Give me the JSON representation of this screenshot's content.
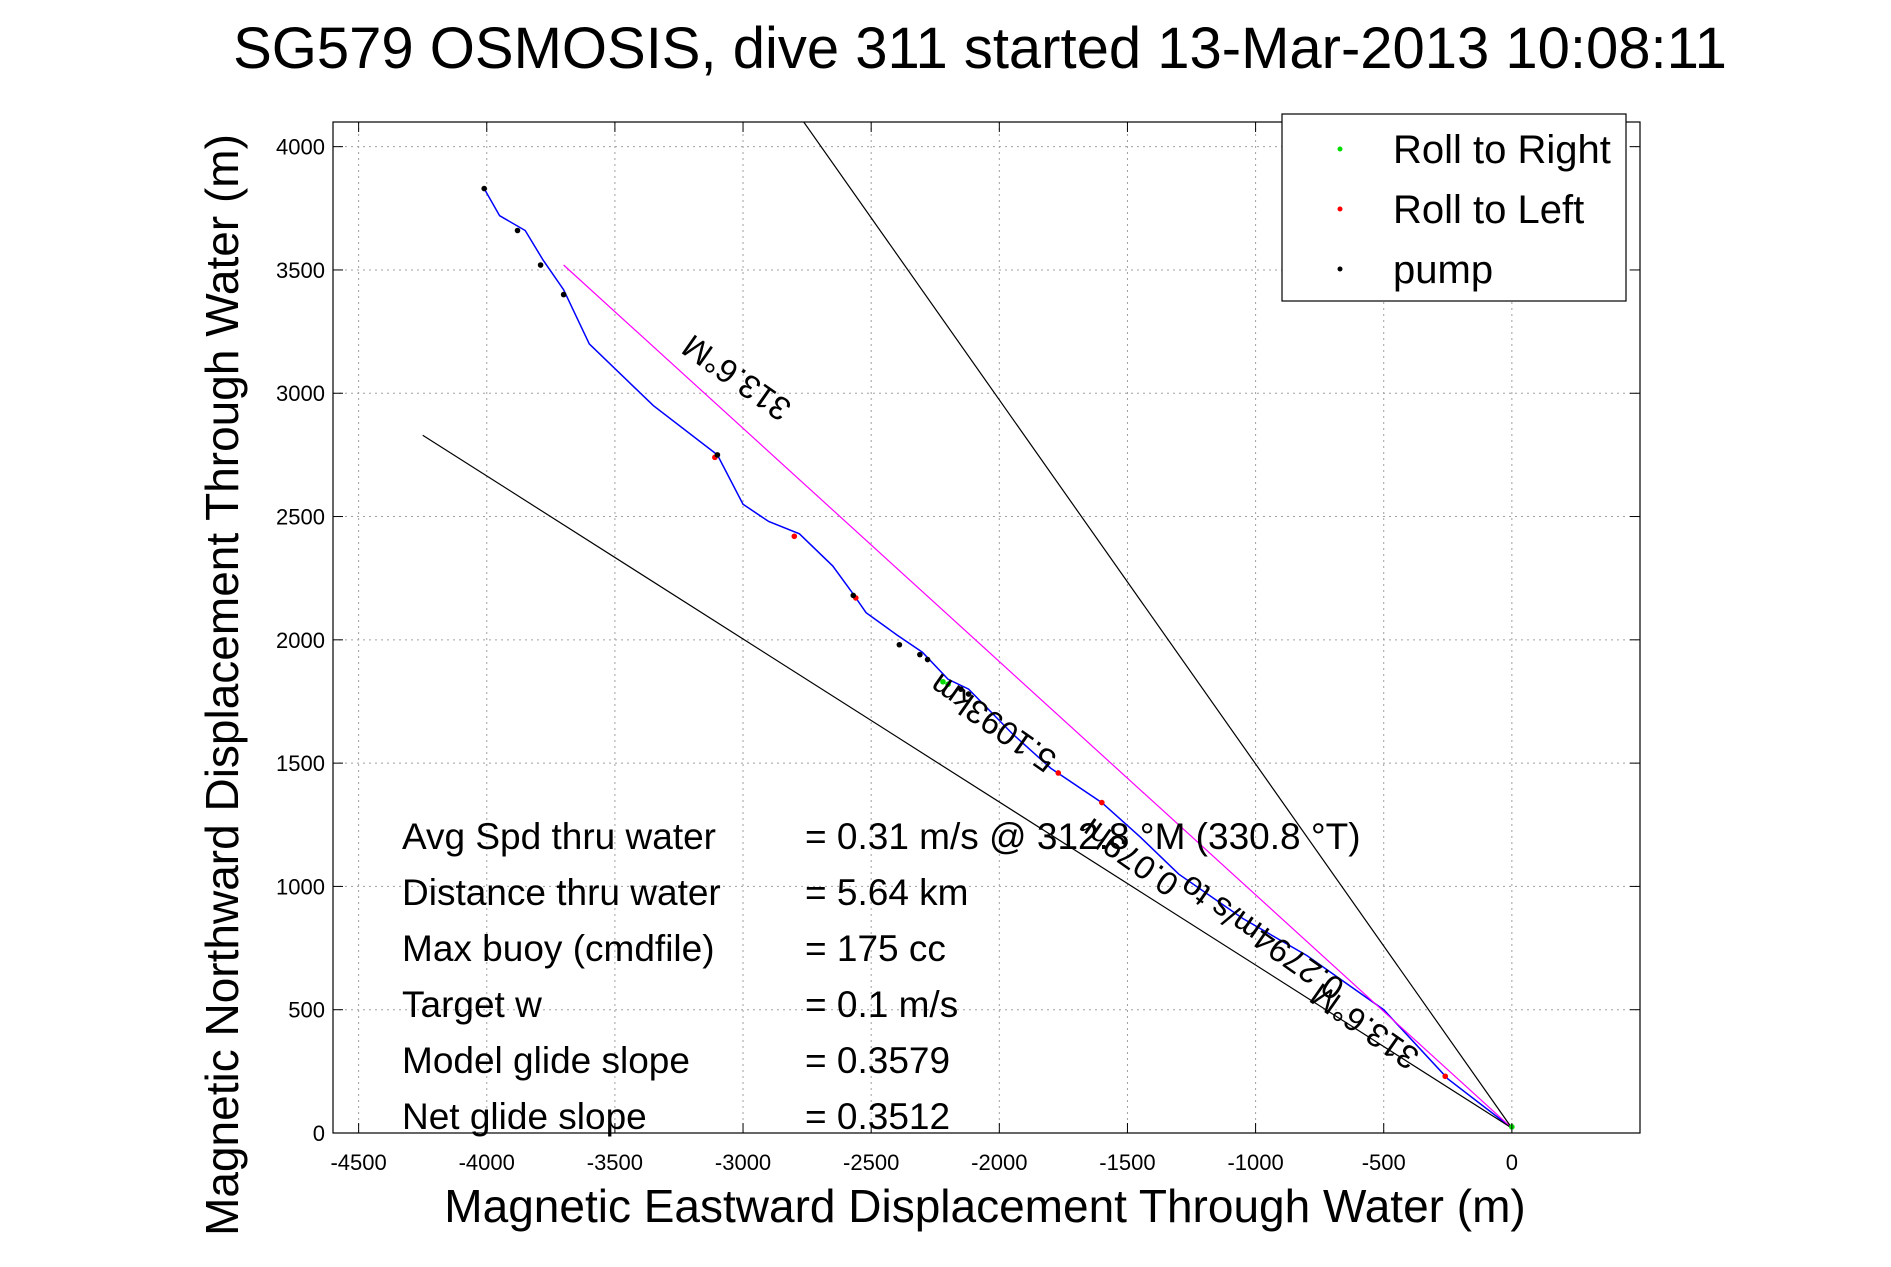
{
  "chart_data": {
    "type": "line",
    "title": "SG579 OSMOSIS, dive 311 started 13-Mar-2013 10:08:11",
    "xlabel": "Magnetic Eastward Displacement Through Water (m)",
    "ylabel": "Magnetic Northward Displacement Through Water (m)",
    "xlim": [
      -4600,
      500
    ],
    "ylim": [
      0,
      4100
    ],
    "xticks": [
      -4500,
      -4000,
      -3500,
      -3000,
      -2500,
      -2000,
      -1500,
      -1000,
      -500,
      0
    ],
    "xtick_labels": [
      "-4500",
      "-4000",
      "-3500",
      "-3000",
      "-2500",
      "-2000",
      "-1500",
      "-1000",
      "-500",
      "0"
    ],
    "yticks": [
      0,
      500,
      1000,
      1500,
      2000,
      2500,
      3000,
      3500,
      4000
    ],
    "ytick_labels": [
      "0",
      "500",
      "1000",
      "1500",
      "2000",
      "2500",
      "3000",
      "3500",
      "4000"
    ],
    "grid": true,
    "legend_position": "top-right",
    "legend": [
      {
        "label": "Roll to Right",
        "color": "#00dd00"
      },
      {
        "label": "Roll to Left",
        "color": "#ff0000"
      },
      {
        "label": "pump",
        "color": "#000000"
      }
    ],
    "series": [
      {
        "kind": "track",
        "color": "#0000ff",
        "points": [
          [
            -4010,
            3830
          ],
          [
            -3950,
            3720
          ],
          [
            -3850,
            3660
          ],
          [
            -3780,
            3540
          ],
          [
            -3700,
            3420
          ],
          [
            -3600,
            3200
          ],
          [
            -3350,
            2950
          ],
          [
            -3100,
            2750
          ],
          [
            -3000,
            2550
          ],
          [
            -2900,
            2480
          ],
          [
            -2780,
            2430
          ],
          [
            -2650,
            2300
          ],
          [
            -2580,
            2200
          ],
          [
            -2520,
            2110
          ],
          [
            -2400,
            2020
          ],
          [
            -2300,
            1950
          ],
          [
            -2200,
            1840
          ],
          [
            -2120,
            1800
          ],
          [
            -1950,
            1620
          ],
          [
            -1800,
            1480
          ],
          [
            -1600,
            1340
          ],
          [
            -1450,
            1200
          ],
          [
            -1300,
            1050
          ],
          [
            -1050,
            870
          ],
          [
            -800,
            720
          ],
          [
            -500,
            500
          ],
          [
            -250,
            220
          ],
          [
            0,
            20
          ]
        ]
      },
      {
        "kind": "heading-line",
        "color": "#ff00ff",
        "points": [
          [
            -3700,
            3520
          ],
          [
            0,
            20
          ]
        ]
      },
      {
        "kind": "cone-line",
        "color": "#000000",
        "points": [
          [
            -3000,
            4450
          ],
          [
            0,
            20
          ]
        ]
      },
      {
        "kind": "cone-line",
        "color": "#000000",
        "points": [
          [
            -4250,
            2830
          ],
          [
            0,
            20
          ]
        ]
      }
    ],
    "markers": {
      "roll_right": [
        [
          0,
          25
        ],
        [
          -2220,
          1830
        ],
        [
          -2200,
          1820
        ]
      ],
      "roll_left": [
        [
          -3110,
          2740
        ],
        [
          -2800,
          2420
        ],
        [
          -2560,
          2170
        ],
        [
          -1770,
          1460
        ],
        [
          -1600,
          1340
        ],
        [
          -260,
          230
        ]
      ],
      "pump": [
        [
          -4010,
          3830
        ],
        [
          -3880,
          3660
        ],
        [
          -3790,
          3520
        ],
        [
          -3700,
          3400
        ],
        [
          -3100,
          2750
        ],
        [
          -2570,
          2180
        ],
        [
          -2390,
          1980
        ],
        [
          -2310,
          1940
        ],
        [
          -2280,
          1920
        ],
        [
          -2150,
          1800
        ],
        [
          -2120,
          1780
        ]
      ]
    },
    "annotations": [
      {
        "text": "313.6°M",
        "anchor": [
          -3000,
          3100
        ],
        "rotate": 215
      },
      {
        "text": "313.6°M",
        "anchor": [
          -550,
          470
        ],
        "rotate": 215
      },
      {
        "text": "5.1093km",
        "anchor": [
          -2000,
          1700
        ],
        "rotate": 215
      },
      {
        "text": "0.079hr",
        "anchor": [
          -1470,
          1160
        ],
        "rotate": 215
      },
      {
        "text": "0.2794m/s to",
        "anchor": [
          -950,
          830
        ],
        "rotate": 215
      }
    ],
    "stats": [
      {
        "label": "Avg Spd thru water",
        "value": "=  0.31 m/s @ 312.8 °M (330.8 °T)"
      },
      {
        "label": "Distance thru water",
        "value": "=  5.64 km"
      },
      {
        "label": "Max buoy (cmdfile)",
        "value": "= 175 cc"
      },
      {
        "label": "Target w",
        "value": "= 0.1 m/s"
      },
      {
        "label": "Model glide slope",
        "value": "= 0.3579"
      },
      {
        "label": "Net glide slope",
        "value": "= 0.3512"
      }
    ]
  }
}
